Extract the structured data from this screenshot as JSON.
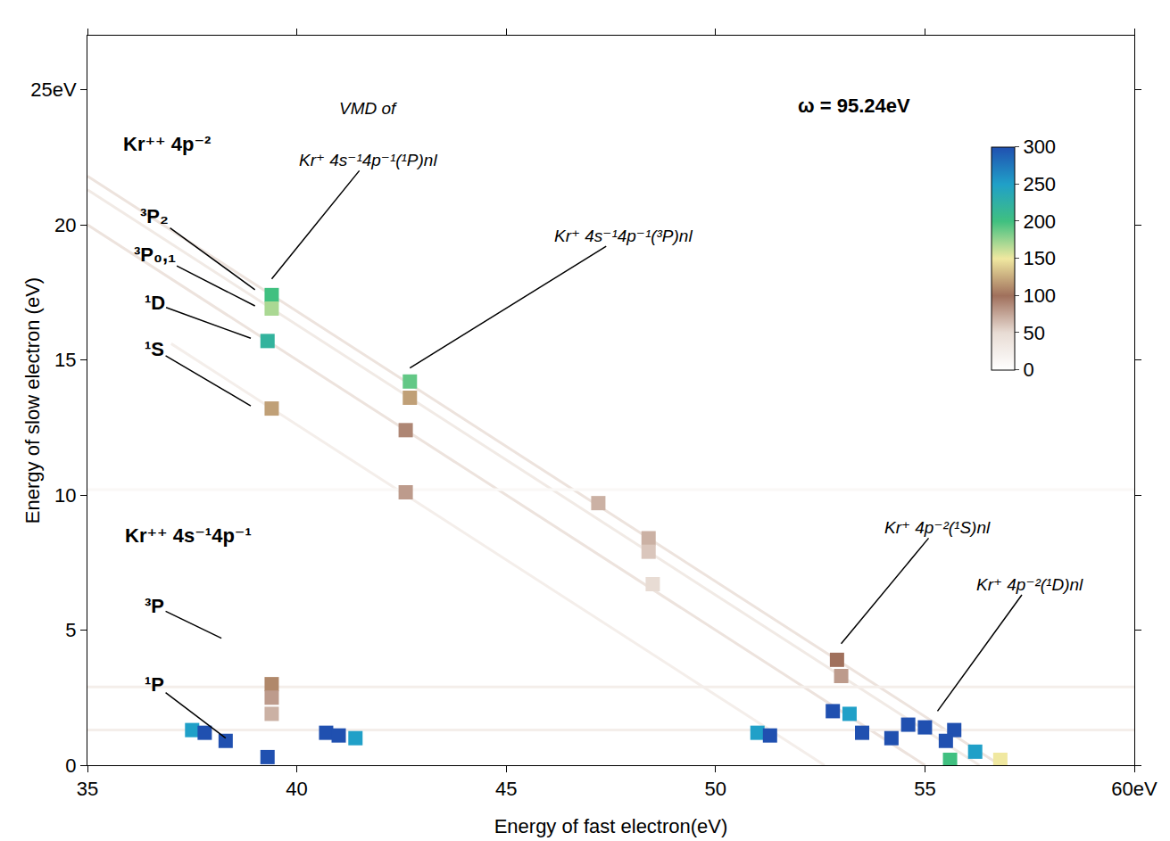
{
  "chart_data": {
    "type": "scatter",
    "xlabel": "Energy of fast electron(eV)",
    "ylabel": "Energy of slow electron (eV)",
    "xlim": [
      35,
      60
    ],
    "ylim": [
      0,
      27
    ],
    "xticks": [
      35,
      40,
      45,
      50,
      55,
      {
        "value": 60,
        "label": "60eV"
      }
    ],
    "yticks": [
      0,
      5,
      10,
      15,
      20,
      {
        "value": 25,
        "label": "25eV"
      }
    ],
    "grid": false,
    "points": {
      "x": [
        39.4,
        39.4,
        39.3,
        39.4,
        42.7,
        42.7,
        42.6,
        42.6,
        47.2,
        48.4,
        48.4,
        48.5,
        39.4,
        39.4,
        39.4,
        52.9,
        53.0,
        37.5,
        37.8,
        38.3,
        39.3,
        40.7,
        41.0,
        41.4,
        51.0,
        51.3,
        52.8,
        53.2,
        53.5,
        54.2,
        54.6,
        55.0,
        55.7,
        55.5,
        55.6,
        56.2,
        56.8
      ],
      "y": [
        17.4,
        16.9,
        15.7,
        13.2,
        14.2,
        13.6,
        12.4,
        10.1,
        9.7,
        8.4,
        7.9,
        6.7,
        3.0,
        2.5,
        1.9,
        3.9,
        3.3,
        1.3,
        1.2,
        0.9,
        0.3,
        1.2,
        1.1,
        1.0,
        1.2,
        1.1,
        2.0,
        1.9,
        1.2,
        1.0,
        1.5,
        1.4,
        1.3,
        0.9,
        0.2,
        0.5,
        0.2
      ],
      "values": [
        200,
        170,
        220,
        120,
        190,
        120,
        90,
        80,
        70,
        70,
        60,
        50,
        110,
        80,
        70,
        100,
        80,
        250,
        300,
        300,
        300,
        300,
        300,
        250,
        250,
        300,
        300,
        250,
        300,
        300,
        300,
        300,
        300,
        300,
        200,
        250,
        150
      ]
    },
    "streaks": [
      {
        "x": [
          35,
          56.8
        ],
        "y": [
          21.8,
          0
        ],
        "value": 40
      },
      {
        "x": [
          35,
          56.3
        ],
        "y": [
          21.3,
          0
        ],
        "value": 30
      },
      {
        "x": [
          35,
          55.0
        ],
        "y": [
          20.0,
          0
        ],
        "value": 40
      },
      {
        "x": [
          37,
          52.6
        ],
        "y": [
          15.6,
          0
        ],
        "value": 25
      },
      {
        "x": [
          35,
          60
        ],
        "y": [
          2.9,
          2.9
        ],
        "value": 25
      },
      {
        "x": [
          35,
          60
        ],
        "y": [
          1.3,
          1.3
        ],
        "value": 25
      },
      {
        "x": [
          35,
          60
        ],
        "y": [
          10.2,
          10.2
        ],
        "value": 10
      }
    ],
    "colorbar": {
      "range": [
        0,
        300
      ],
      "ticks": [
        0,
        50,
        100,
        150,
        200,
        250,
        300
      ]
    },
    "annotations": [
      {
        "text": "Kr⁺⁺ 4p⁻²",
        "x": 36.9,
        "y": 23.0,
        "font": "bold"
      },
      {
        "text": "³P₂",
        "x": 36.6,
        "y": 20.3,
        "point": [
          39.0,
          17.6
        ],
        "font": "bold"
      },
      {
        "text": "³P₀,₁",
        "x": 36.6,
        "y": 18.9,
        "point": [
          39.0,
          17.0
        ],
        "font": "bold"
      },
      {
        "text": "¹D",
        "x": 36.6,
        "y": 17.1,
        "point": [
          38.9,
          15.8
        ],
        "font": "bold"
      },
      {
        "text": "¹S",
        "x": 36.6,
        "y": 15.4,
        "point": [
          38.9,
          13.3
        ],
        "font": "bold"
      },
      {
        "text": "Kr⁺⁺ 4s⁻¹4p⁻¹",
        "x": 37.4,
        "y": 8.5,
        "font": "bold"
      },
      {
        "text": "³P",
        "x": 36.6,
        "y": 5.9,
        "point": [
          38.2,
          4.7
        ],
        "font": "bold"
      },
      {
        "text": "¹P",
        "x": 36.6,
        "y": 3.0,
        "point": [
          38.3,
          1.0
        ],
        "font": "bold"
      },
      {
        "text": "VMD of",
        "x": 41.7,
        "y": 24.3,
        "font": "italic"
      },
      {
        "text": "Kr⁺ 4s⁻¹4p⁻¹(¹P)nl",
        "x": 41.7,
        "y": 22.4,
        "point": [
          39.4,
          18.0
        ],
        "font": "italic"
      },
      {
        "text": "Kr⁺ 4s⁻¹4p⁻¹(³P)nl",
        "x": 47.8,
        "y": 19.6,
        "point": [
          42.7,
          14.7
        ],
        "font": "italic"
      },
      {
        "text": "Kr⁺ 4p⁻²(¹S)nl",
        "x": 55.3,
        "y": 8.8,
        "point": [
          53.0,
          4.5
        ],
        "font": "italic"
      },
      {
        "text": "Kr⁺ 4p⁻²(¹D)nl",
        "x": 57.5,
        "y": 6.7,
        "point": [
          55.3,
          2.0
        ],
        "font": "italic"
      },
      {
        "text": "ω = 95.24eV",
        "x": 53.3,
        "y": 24.4,
        "font": "bold"
      }
    ]
  }
}
